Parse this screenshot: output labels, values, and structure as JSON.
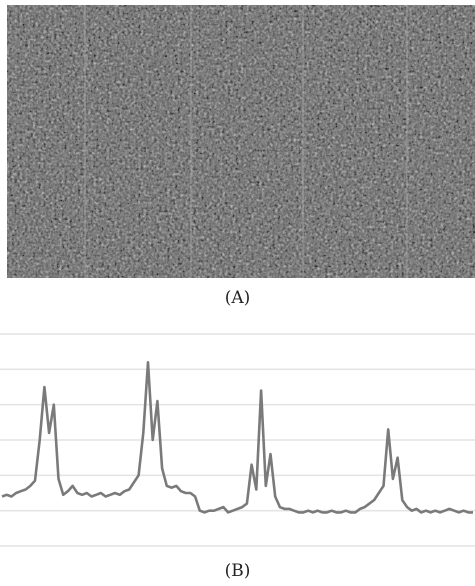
{
  "captions": {
    "a": "(A)",
    "b": "(B)"
  },
  "panel_a": {
    "base_color": "#5d5d5d",
    "streak_color": "#b0b0b0"
  },
  "chart_data": {
    "type": "line",
    "x": [
      0,
      2,
      4,
      6,
      8,
      10,
      12,
      14,
      16,
      18,
      20,
      22,
      24,
      26,
      28,
      30,
      32,
      34,
      36,
      38,
      40,
      42,
      44,
      46,
      48,
      50,
      52,
      54,
      56,
      58,
      60,
      62,
      64,
      66,
      68,
      70,
      72,
      74,
      76,
      78,
      80,
      82,
      84,
      86,
      88,
      90,
      92,
      94,
      96,
      98,
      100,
      102,
      104,
      106,
      108,
      110,
      112,
      114,
      116,
      118,
      120,
      122,
      124,
      126,
      128,
      130,
      132,
      134,
      136,
      138,
      140,
      142,
      144,
      146,
      148,
      150,
      152,
      154,
      156,
      158,
      160,
      162,
      164,
      166,
      168,
      170,
      172,
      174,
      176,
      178,
      180,
      182,
      184,
      186,
      188,
      190,
      192,
      194,
      196,
      198,
      200
    ],
    "series": [
      {
        "values": [
          1.4,
          1.45,
          1.4,
          1.5,
          1.55,
          1.6,
          1.7,
          1.85,
          3,
          4.5,
          3.2,
          4,
          1.9,
          1.45,
          1.55,
          1.7,
          1.5,
          1.45,
          1.5,
          1.4,
          1.45,
          1.5,
          1.4,
          1.45,
          1.5,
          1.45,
          1.55,
          1.6,
          1.8,
          2,
          3.2,
          5.2,
          3,
          4.1,
          2.2,
          1.7,
          1.65,
          1.7,
          1.55,
          1.5,
          1.5,
          1.4,
          1,
          0.95,
          1,
          1,
          1.05,
          1.1,
          0.95,
          1,
          1.05,
          1.1,
          1.2,
          2.3,
          1.6,
          4.4,
          1.7,
          2.6,
          1.4,
          1.1,
          1.05,
          1.05,
          1,
          0.95,
          0.95,
          1,
          0.95,
          1,
          0.95,
          0.95,
          1,
          0.95,
          0.95,
          1,
          0.95,
          0.95,
          1.05,
          1.1,
          1.2,
          1.3,
          1.5,
          1.7,
          3.3,
          1.9,
          2.5,
          1.3,
          1.1,
          1,
          1.05,
          0.95,
          1,
          0.95,
          1,
          0.95,
          1,
          1.05,
          1,
          0.95,
          1,
          0.95,
          0.95
        ]
      }
    ],
    "ylim": [
      0,
      6
    ],
    "grid": true
  }
}
